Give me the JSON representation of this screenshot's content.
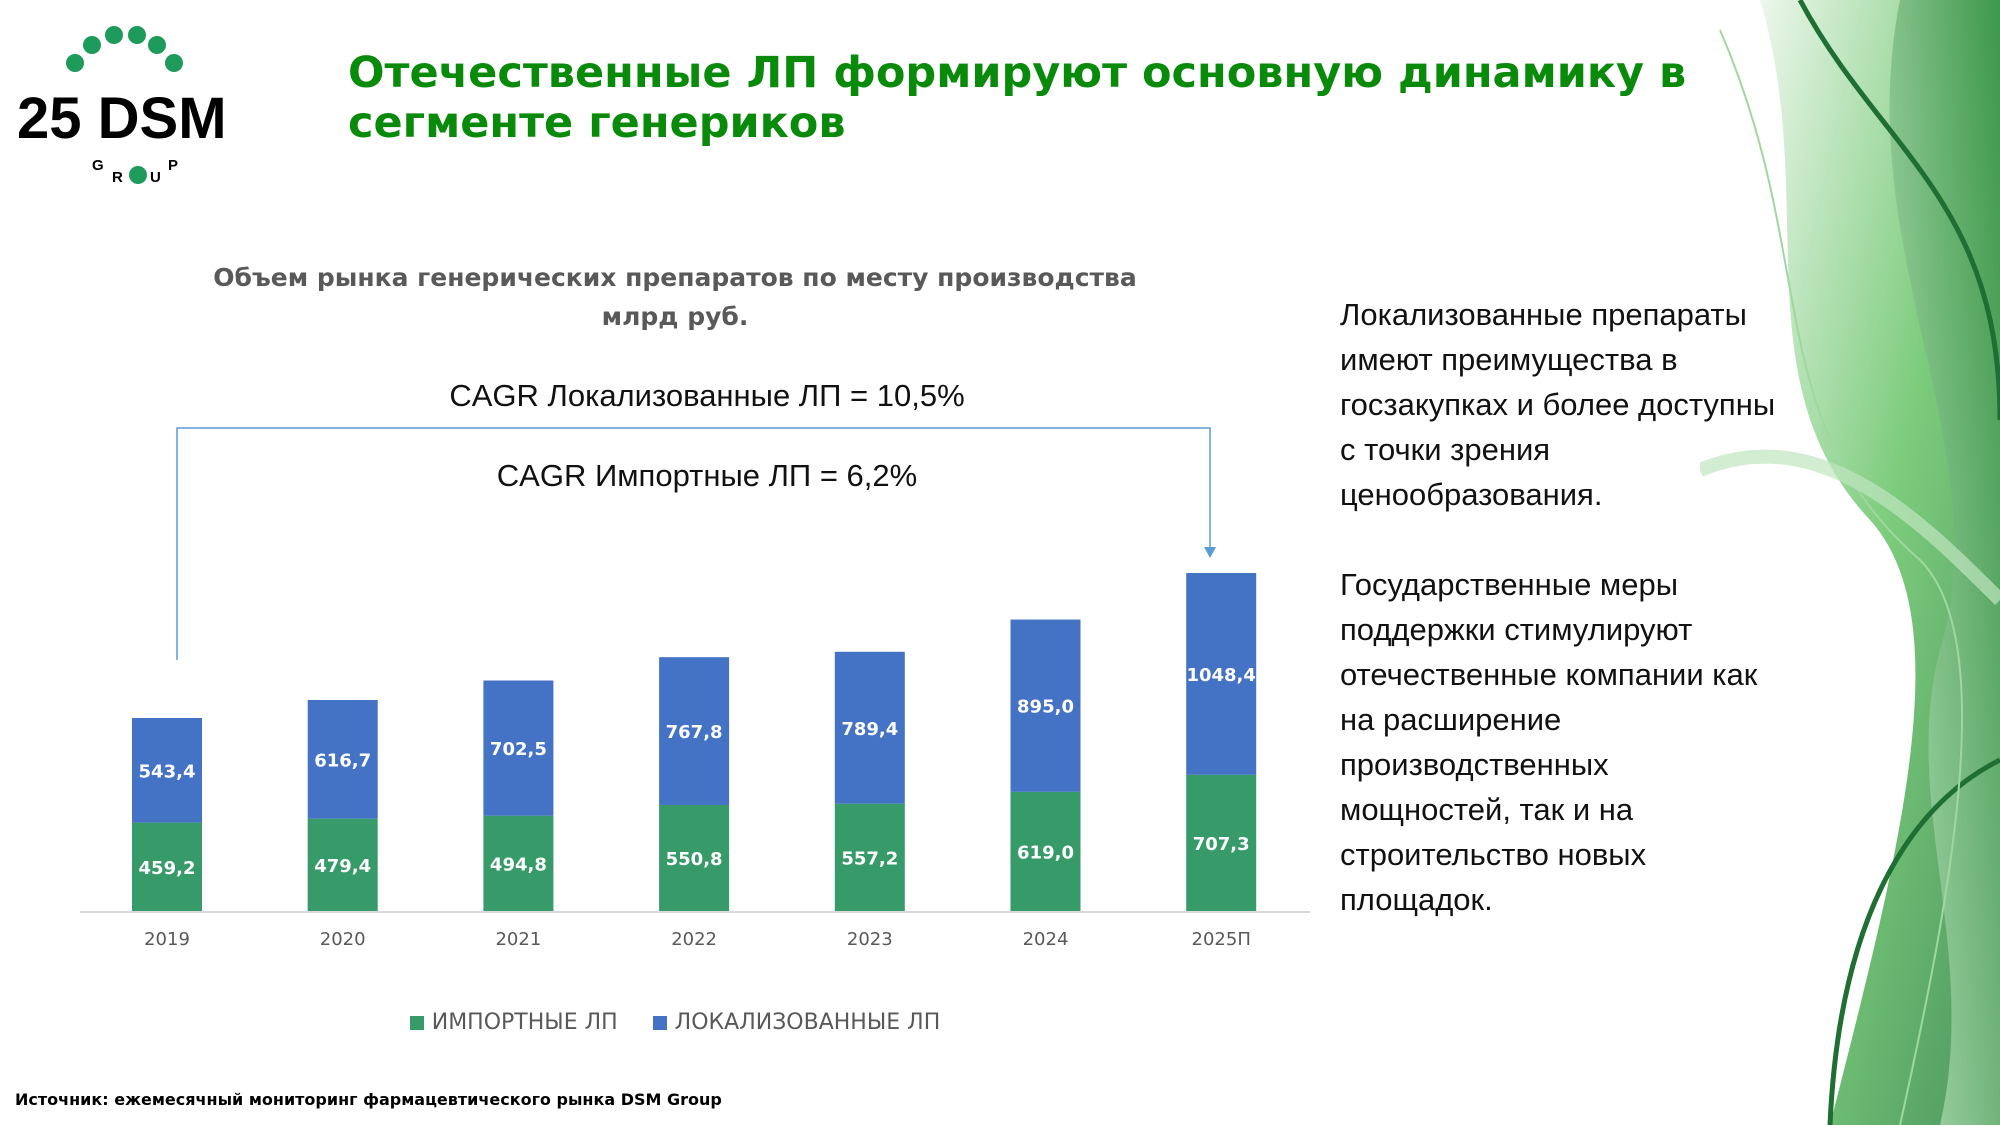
{
  "header": {
    "title": "Отечественные ЛП формируют основную динамику в сегменте генериков",
    "logo_text": "25 DSM GROUP"
  },
  "chart_data": {
    "type": "bar",
    "stacked": true,
    "title": "Объем рынка генерических препаратов по месту производства",
    "subtitle": "млрд руб.",
    "categories": [
      "2019",
      "2020",
      "2021",
      "2022",
      "2023",
      "2024",
      "2025П"
    ],
    "series": [
      {
        "name": "ИМПОРТНЫЕ ЛП",
        "color": "#379b69",
        "values": [
          459.2,
          479.4,
          494.8,
          550.8,
          557.2,
          619.0,
          707.3
        ],
        "labels": [
          "459,2",
          "479,4",
          "494,8",
          "550,8",
          "557,2",
          "619,0",
          "707,3"
        ]
      },
      {
        "name": "ЛОКАЛИЗОВАННЫЕ ЛП",
        "color": "#4472c4",
        "values": [
          543.4,
          616.7,
          702.5,
          767.8,
          789.4,
          895.0,
          1048.4
        ],
        "labels": [
          "543,4",
          "616,7",
          "702,5",
          "767,8",
          "789,4",
          "895,0",
          "1048,4"
        ]
      }
    ],
    "legend_position": "bottom",
    "grid": false,
    "annotations": [
      "CAGR Локализованные ЛП = 10,5%",
      "CAGR Импортные ЛП = 6,2%"
    ]
  },
  "side_text": {
    "paragraphs": [
      [
        "Локализованные препараты",
        "имеют преимущества в",
        "госзакупках и более доступны",
        "с точки зрения",
        "ценообразования."
      ],
      [
        "Государственные меры",
        "поддержки стимулируют",
        "отечественные компании как",
        "на расширение",
        "производственных",
        "мощностей, так и на",
        "строительство новых",
        "площадок."
      ]
    ]
  },
  "footer": {
    "source": "Источник: ежемесячный мониторинг фармацевтического рынка DSM Group"
  }
}
